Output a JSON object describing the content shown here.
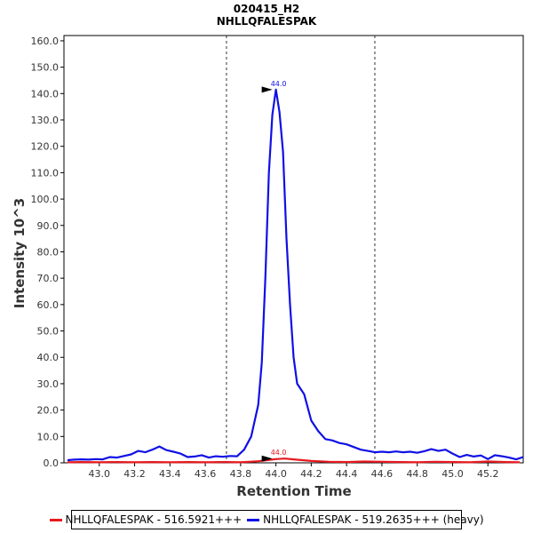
{
  "chart_data": {
    "type": "line",
    "title": "020415_H2",
    "subtitle": "NHLLQFALESPAK",
    "xlabel": "Retention Time",
    "ylabel": "Intensity 10^3",
    "xlim": [
      42.8,
      45.4
    ],
    "ylim": [
      0,
      162
    ],
    "xticks": [
      43.0,
      43.2,
      43.4,
      43.6,
      43.8,
      44.0,
      44.2,
      44.4,
      44.6,
      44.8,
      45.0,
      45.2
    ],
    "xtick_labels": [
      "43.0",
      "43.2",
      "43.4",
      "43.6",
      "43.8",
      "44.0",
      "44.2",
      "44.4",
      "44.6",
      "44.8",
      "45.0",
      "45.2"
    ],
    "yticks": [
      0,
      10,
      20,
      30,
      40,
      50,
      60,
      70,
      80,
      90,
      100,
      110,
      120,
      130,
      140,
      150,
      160
    ],
    "ytick_labels": [
      "0.0",
      "10.0",
      "20.0",
      "30.0",
      "40.0",
      "50.0",
      "60.0",
      "70.0",
      "80.0",
      "90.0",
      "100.0",
      "110.0",
      "120.0",
      "130.0",
      "140.0",
      "150.0",
      "160.0"
    ],
    "vlines": [
      43.72,
      44.56
    ],
    "series": [
      {
        "name": "NHLLQFALESPAK - 516.5921+++",
        "color": "#e8191f",
        "x": [
          42.82,
          42.9,
          43.0,
          43.1,
          43.2,
          43.3,
          43.4,
          43.5,
          43.6,
          43.7,
          43.8,
          43.85,
          43.9,
          43.95,
          44.0,
          44.05,
          44.1,
          44.15,
          44.2,
          44.3,
          44.4,
          44.5,
          44.6,
          44.7,
          44.8,
          44.9,
          45.0,
          45.1,
          45.2,
          45.3,
          45.38
        ],
        "values": [
          0.2,
          0.3,
          0.2,
          0.3,
          0.2,
          0.3,
          0.2,
          0.3,
          0.2,
          0.3,
          0.2,
          0.4,
          0.6,
          1.0,
          1.4,
          1.6,
          1.3,
          1.0,
          0.7,
          0.4,
          0.3,
          0.5,
          0.4,
          0.3,
          0.2,
          0.4,
          0.3,
          0.2,
          0.5,
          0.3,
          0.2
        ]
      },
      {
        "name": "NHLLQFALESPAK - 519.2635+++ (heavy)",
        "color": "#1010e6",
        "x": [
          42.82,
          42.86,
          42.9,
          42.94,
          42.98,
          43.02,
          43.06,
          43.1,
          43.14,
          43.18,
          43.22,
          43.26,
          43.3,
          43.34,
          43.38,
          43.42,
          43.46,
          43.5,
          43.54,
          43.58,
          43.62,
          43.66,
          43.7,
          43.74,
          43.78,
          43.82,
          43.86,
          43.9,
          43.92,
          43.94,
          43.96,
          43.98,
          44.0,
          44.02,
          44.04,
          44.06,
          44.08,
          44.1,
          44.12,
          44.14,
          44.16,
          44.2,
          44.24,
          44.28,
          44.32,
          44.36,
          44.4,
          44.44,
          44.48,
          44.52,
          44.56,
          44.6,
          44.64,
          44.68,
          44.72,
          44.76,
          44.8,
          44.84,
          44.88,
          44.92,
          44.96,
          45.0,
          45.04,
          45.08,
          45.12,
          45.16,
          45.2,
          45.24,
          45.28,
          45.32,
          45.36,
          45.4
        ],
        "values": [
          1.0,
          1.2,
          1.3,
          1.2,
          1.4,
          1.3,
          2.2,
          2.0,
          2.6,
          3.2,
          4.5,
          4.0,
          5.0,
          6.2,
          4.8,
          4.2,
          3.5,
          2.2,
          2.4,
          2.9,
          2.0,
          2.5,
          2.3,
          2.6,
          2.5,
          5.0,
          10.0,
          22.0,
          38.0,
          70.0,
          110.0,
          132.0,
          141.5,
          133.0,
          118.0,
          85.0,
          60.0,
          40.0,
          30.0,
          28.0,
          26.0,
          16.0,
          12.0,
          9.0,
          8.5,
          7.5,
          7.0,
          6.0,
          5.0,
          4.5,
          4.0,
          4.2,
          4.0,
          4.3,
          4.0,
          4.2,
          3.8,
          4.4,
          5.2,
          4.5,
          5.0,
          3.5,
          2.2,
          3.0,
          2.4,
          2.8,
          1.4,
          2.9,
          2.5,
          2.0,
          1.3,
          2.2
        ]
      }
    ],
    "peak_labels": [
      {
        "series": 1,
        "x": 44.0,
        "y": 141.5,
        "text": "44.0"
      },
      {
        "series": 0,
        "x": 44.0,
        "y": 1.6,
        "text": "44.0"
      }
    ]
  }
}
